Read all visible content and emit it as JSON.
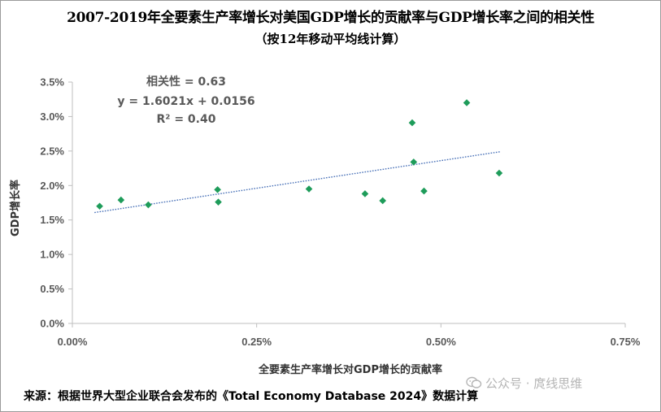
{
  "chart_data": {
    "type": "scatter",
    "title": "2007-2019年全要素生产率增长对美国GDP增长的贡献率与GDP增长率之间的相关性",
    "subtitle": "（按12年移动平均线计算）",
    "xlabel": "全要素生产率增长对GDP增长的贡献率",
    "ylabel": "GDP增长率",
    "xlim": [
      0.0,
      0.0075
    ],
    "ylim": [
      0.0,
      0.035
    ],
    "x_ticks": [
      "0.00%",
      "0.25%",
      "0.50%",
      "0.75%"
    ],
    "y_ticks": [
      "0.0%",
      "0.5%",
      "1.0%",
      "1.5%",
      "2.0%",
      "2.5%",
      "3.0%",
      "3.5%"
    ],
    "grid": false,
    "legend": "none",
    "marker_color": "#1e9c5a",
    "trendline_color": "#4a72b8",
    "points": [
      {
        "x": 0.00037,
        "y": 0.017
      },
      {
        "x": 0.00066,
        "y": 0.0179
      },
      {
        "x": 0.00103,
        "y": 0.0172
      },
      {
        "x": 0.00197,
        "y": 0.0194
      },
      {
        "x": 0.00198,
        "y": 0.0176
      },
      {
        "x": 0.00321,
        "y": 0.0195
      },
      {
        "x": 0.00397,
        "y": 0.0188
      },
      {
        "x": 0.00421,
        "y": 0.0178
      },
      {
        "x": 0.00461,
        "y": 0.0291
      },
      {
        "x": 0.00463,
        "y": 0.0234
      },
      {
        "x": 0.00477,
        "y": 0.0192
      },
      {
        "x": 0.00535,
        "y": 0.032
      },
      {
        "x": 0.00579,
        "y": 0.0218
      }
    ],
    "trendline": {
      "slope": 1.6021,
      "intercept": 0.0156,
      "x_range": [
        0.0003,
        0.0058
      ]
    },
    "annotations": [
      "相关性 = 0.63",
      "y = 1.6021x + 0.0156",
      "R² = 0.40"
    ]
  },
  "source": "来源：根据世界大型企业联合会发布的《Total Economy Database 2024》数据计算",
  "watermark": "公众号 · 庹线思维",
  "watermark_icon": "wechat-bubbles-icon"
}
